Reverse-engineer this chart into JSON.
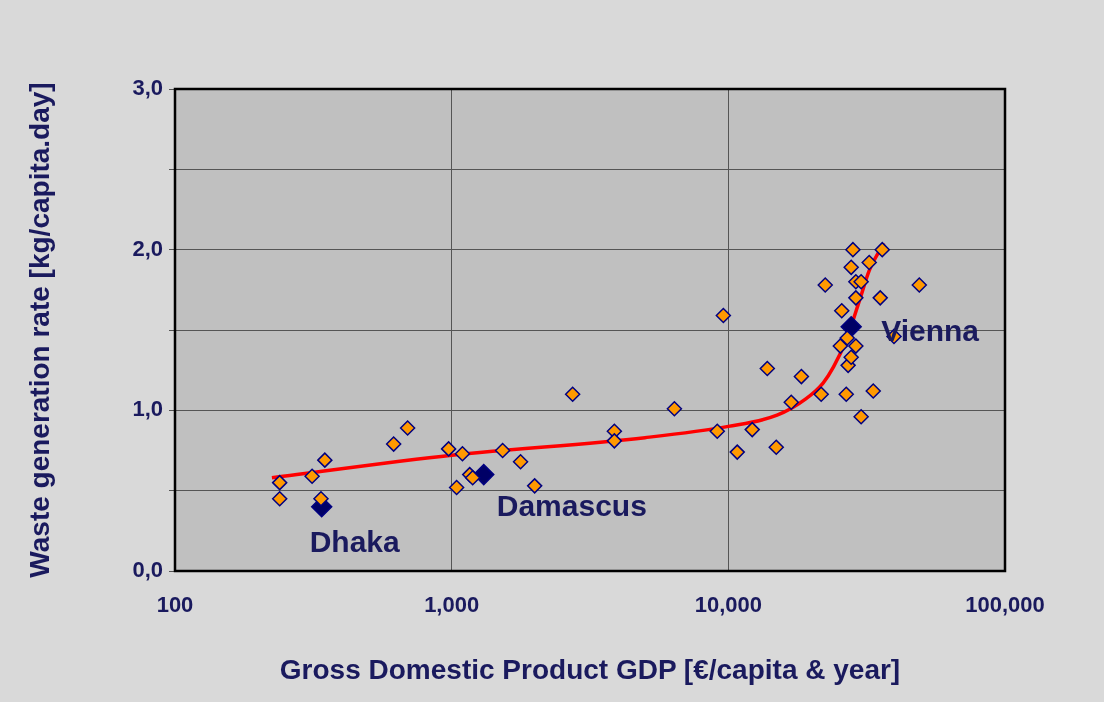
{
  "chart_data": {
    "type": "scatter",
    "xlabel": "Gross Domestic Product GDP [€/capita & year]",
    "ylabel": "Waste generation rate [kg/capita.day]",
    "log": "x",
    "xlim": [
      100,
      100000
    ],
    "xticks": [
      100,
      {
        "value": 1000,
        "label": "1,000"
      },
      {
        "value": 10000,
        "label": "10,000"
      },
      {
        "value": 100000,
        "label": "100,000"
      }
    ],
    "ylim": [
      0,
      3
    ],
    "yticks": [
      {
        "value": 0,
        "label": "0,0"
      },
      {
        "value": 0.5,
        "label": null
      },
      {
        "value": 1,
        "label": "1,0"
      },
      {
        "value": 1.5,
        "label": null
      },
      {
        "value": 2,
        "label": "2,0"
      },
      {
        "value": 2.5,
        "label": null
      },
      {
        "value": 3,
        "label": "3,0"
      }
    ],
    "grid": true,
    "legend": false,
    "marker": "diamond",
    "series": [
      {
        "color": "#ff9900",
        "x": [
          239,
          239,
          313,
          348,
          337,
          617,
          693,
          975,
          1094,
          1042,
          1162,
          1191,
          1528,
          1774,
          1995,
          2737,
          3873,
          3873,
          6383,
          9594,
          9120,
          10770,
          12200,
          14900,
          13830,
          18370,
          16880,
          21660,
          26680,
          30200,
          33400,
          27100,
          27800,
          25400,
          28900,
          26900,
          25700,
          28900,
          35400,
          22400,
          49000,
          28900,
          30200,
          27800,
          32300,
          28200,
          36000,
          39700
        ],
        "values": [
          0.55,
          0.45,
          0.59,
          0.69,
          0.45,
          0.79,
          0.89,
          0.76,
          0.73,
          0.52,
          0.6,
          0.58,
          0.75,
          0.68,
          0.53,
          1.1,
          0.87,
          0.81,
          1.01,
          1.59,
          0.87,
          0.74,
          0.88,
          0.77,
          1.26,
          1.21,
          1.05,
          1.1,
          1.1,
          0.96,
          1.12,
          1.28,
          1.33,
          1.4,
          1.4,
          1.45,
          1.62,
          1.7,
          1.7,
          1.78,
          1.78,
          1.8,
          1.8,
          1.89,
          1.92,
          2.0,
          2.0,
          1.46
        ]
      },
      {
        "type": "scatter",
        "color": "#000066",
        "x": [
          339,
          1306,
          27800
        ],
        "values": [
          0.4,
          0.6,
          1.52
        ]
      },
      {
        "type": "line",
        "color": "#ff0000",
        "marker": "none",
        "x": [
          224,
          1000,
          5000,
          10000,
          15000,
          19000,
          22000,
          24000,
          26700,
          30000,
          32300,
          36500
        ],
        "values": [
          0.58,
          0.72,
          0.83,
          0.9,
          0.97,
          1.07,
          1.17,
          1.27,
          1.44,
          1.7,
          1.87,
          2.04
        ]
      }
    ],
    "annotations": [
      {
        "text": "Dhaka",
        "x": 339,
        "y": 0.4
      },
      {
        "text": "Damascus",
        "x": 1306,
        "y": 0.6
      },
      {
        "text": "Vienna",
        "x": 27800,
        "y": 1.52
      }
    ]
  }
}
